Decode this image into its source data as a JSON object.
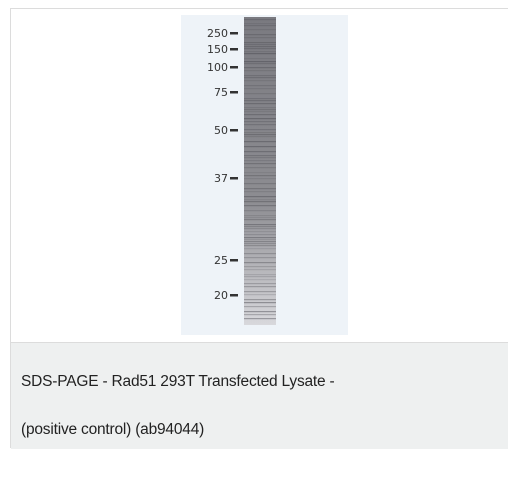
{
  "figure": {
    "markers": [
      "250",
      "150",
      "100",
      "75",
      "50",
      "37",
      "25",
      "20"
    ]
  },
  "caption": {
    "lines": [
      "SDS-PAGE - Rad51 293T Transfected Lysate -",
      "(positive control) (ab94044)"
    ]
  }
}
